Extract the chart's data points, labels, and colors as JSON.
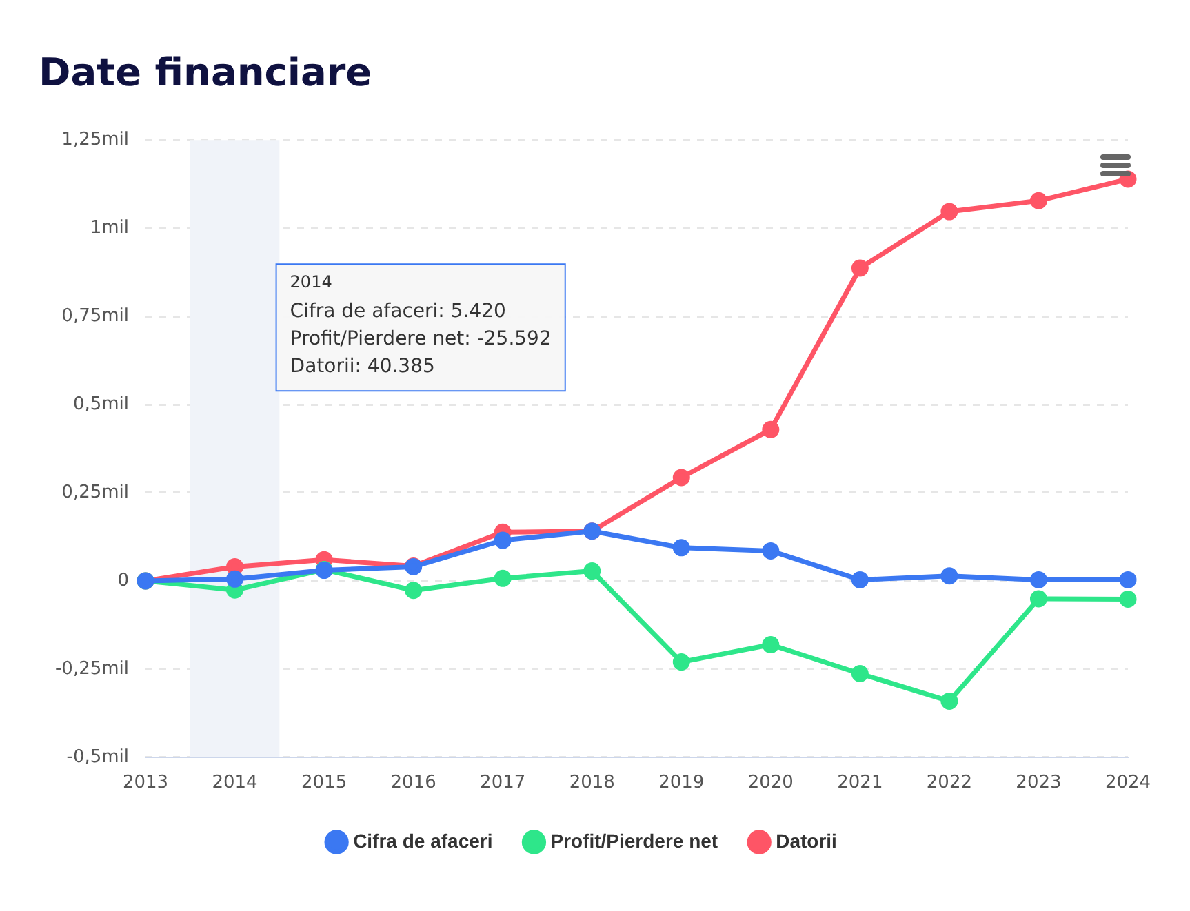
{
  "chart_data": {
    "type": "line",
    "title": "Date financiare",
    "categories": [
      "2013",
      "2014",
      "2015",
      "2016",
      "2017",
      "2018",
      "2019",
      "2020",
      "2021",
      "2022",
      "2023",
      "2024"
    ],
    "series": [
      {
        "name": "Cifra de afaceri",
        "color": "#3b78f2",
        "values": [
          0,
          0.005,
          0.03,
          0.04,
          0.115,
          0.141,
          0.094,
          0.085,
          0.003,
          0.014,
          0.003,
          0.003
        ]
      },
      {
        "name": "Profit/Pierdere net",
        "color": "#2ee68a",
        "values": [
          0,
          -0.026,
          0.032,
          -0.027,
          0.007,
          0.028,
          -0.23,
          -0.181,
          -0.263,
          -0.341,
          -0.051,
          -0.052
        ]
      },
      {
        "name": "Datorii",
        "color": "#fe5566",
        "values": [
          0,
          0.04,
          0.06,
          0.042,
          0.138,
          0.141,
          0.293,
          0.429,
          0.887,
          1.047,
          1.078,
          1.139
        ]
      }
    ],
    "ylim": [
      -0.5,
      1.25
    ],
    "yticks": [
      {
        "value": -0.5,
        "label": "-0,5mil"
      },
      {
        "value": -0.25,
        "label": "-0,25mil"
      },
      0,
      {
        "value": 0.25,
        "label": "0,25mil"
      },
      {
        "value": 0.5,
        "label": "0,5mil"
      },
      {
        "value": 0.75,
        "label": "0,75mil"
      },
      {
        "value": 1,
        "label": "1mil"
      },
      {
        "value": 1.25,
        "label": "1,25mil"
      }
    ],
    "bands": [
      {
        "axis": "x",
        "from": "2014",
        "to": "2014",
        "color": "#f0f3f9"
      }
    ],
    "annotations": [
      "2014",
      "Cifra de afaceri: 5.420",
      "Profit/Pierdere net: -25.592",
      "Datorii: 40.385"
    ],
    "grid": "y",
    "legend": "bottom",
    "marker": "circle",
    "line_style": "solid"
  }
}
